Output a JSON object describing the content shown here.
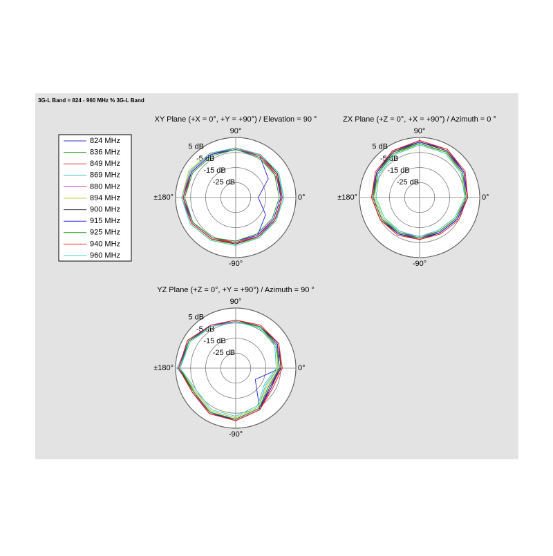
{
  "header": "3G-L Band = 824 - 960 MHz % 3G-L Band",
  "chart_data": [
    {
      "type": "polar",
      "title": "XY Plane (+X = 0°, +Y = +90°) / Elevation = 90 °",
      "theta": [
        0,
        30,
        60,
        90,
        120,
        150,
        180,
        210,
        240,
        270,
        300,
        330
      ],
      "rlim": [
        -35,
        5
      ],
      "rticks": [
        {
          "value": 5,
          "label": "5 dB"
        },
        {
          "value": -5,
          "label": "-5 dB"
        },
        {
          "value": -15,
          "label": "-15 dB"
        },
        {
          "value": -25,
          "label": "-25 dB"
        }
      ],
      "thetaticks": [
        {
          "value": 90,
          "label": "90°"
        },
        {
          "value": 0,
          "label": "0°"
        },
        {
          "value": 180,
          "label": "±180°"
        },
        {
          "value": -90,
          "label": "-90°"
        }
      ],
      "series": [
        {
          "name": "824 MHz",
          "color": "#3333cc",
          "values": [
            -20,
            -10,
            -3,
            -2,
            -1,
            0,
            1,
            -1,
            -3,
            -5,
            -6,
            -12
          ]
        },
        {
          "name": "836 MHz",
          "color": "#339933",
          "values": [
            -4,
            -3,
            -2,
            -2,
            -1,
            0,
            0,
            -1,
            -3,
            -4,
            -5,
            -5
          ]
        },
        {
          "name": "849 MHz",
          "color": "#dd3333",
          "values": [
            -5,
            -3,
            -3,
            -2,
            -2,
            -1,
            -1,
            -2,
            -4,
            -5,
            -6,
            -6
          ]
        },
        {
          "name": "869 MHz",
          "color": "#33bbbb",
          "values": [
            -3,
            -3,
            -2,
            -2,
            -1,
            0,
            1,
            0,
            -2,
            -4,
            -5,
            -4
          ]
        },
        {
          "name": "880 MHz",
          "color": "#cc33cc",
          "values": [
            -4,
            -4,
            -3,
            -2,
            -2,
            -1,
            0,
            -1,
            -3,
            -5,
            -6,
            -5
          ]
        },
        {
          "name": "894 MHz",
          "color": "#cccc33",
          "values": [
            -3,
            -2,
            -2,
            -2,
            -1,
            1,
            1,
            0,
            -2,
            -4,
            -4,
            -4
          ]
        },
        {
          "name": "900 MHz",
          "color": "#333333",
          "values": [
            -4,
            -3,
            -2,
            -2,
            -2,
            -1,
            0,
            -1,
            -3,
            -4,
            -5,
            -5
          ]
        },
        {
          "name": "915 MHz",
          "color": "#2222dd",
          "values": [
            -5,
            -4,
            -3,
            -3,
            -2,
            -1,
            0,
            -2,
            -4,
            -6,
            -6,
            -6
          ]
        },
        {
          "name": "925 MHz",
          "color": "#229922",
          "values": [
            -6,
            -5,
            -4,
            -3,
            -3,
            -2,
            -1,
            -2,
            -4,
            -6,
            -7,
            -7
          ]
        },
        {
          "name": "940 MHz",
          "color": "#ee2222",
          "values": [
            -4,
            -4,
            -3,
            -2,
            -1,
            0,
            0,
            -1,
            -3,
            -5,
            -5,
            -5
          ]
        },
        {
          "name": "960 MHz",
          "color": "#44cccc",
          "values": [
            -3,
            -2,
            -2,
            -2,
            -1,
            0,
            1,
            0,
            -2,
            -3,
            -4,
            -4
          ]
        }
      ]
    },
    {
      "type": "polar",
      "title": "ZX Plane (+Z = 0°, +X = +90°) / Azimuth = 0 °",
      "theta": [
        0,
        30,
        60,
        90,
        120,
        150,
        180,
        210,
        240,
        270,
        300,
        330
      ],
      "rlim": [
        -35,
        5
      ],
      "rticks": [
        {
          "value": 5,
          "label": "5 dB"
        },
        {
          "value": -5,
          "label": "-5 dB"
        },
        {
          "value": -15,
          "label": "-15 dB"
        },
        {
          "value": -25,
          "label": "-25 dB"
        }
      ],
      "thetaticks": [
        {
          "value": 90,
          "label": "90°"
        },
        {
          "value": 0,
          "label": "0°"
        },
        {
          "value": 180,
          "label": "±180°"
        },
        {
          "value": -90,
          "label": "-90°"
        }
      ],
      "series": [
        {
          "color": "#3333cc",
          "values": [
            -3,
            -1,
            1,
            2,
            1,
            -2,
            -4,
            -6,
            -7,
            -7,
            -8,
            -6
          ]
        },
        {
          "color": "#339933",
          "values": [
            -4,
            -2,
            0,
            1,
            0,
            -3,
            -4,
            -6,
            -8,
            -8,
            -9,
            -7
          ]
        },
        {
          "color": "#dd3333",
          "values": [
            -3,
            -1,
            2,
            3,
            1,
            -2,
            -3,
            -5,
            -7,
            -7,
            -8,
            -6
          ]
        },
        {
          "color": "#33bbbb",
          "values": [
            -4,
            -2,
            0,
            1,
            -1,
            -3,
            -5,
            -7,
            -8,
            -8,
            -9,
            -7
          ]
        },
        {
          "color": "#cc33cc",
          "values": [
            -3,
            -2,
            1,
            2,
            0,
            -2,
            -4,
            -6,
            -8,
            -9,
            -9,
            -7
          ]
        },
        {
          "color": "#cccc33",
          "values": [
            -4,
            -3,
            0,
            0,
            -1,
            -3,
            -5,
            -7,
            -9,
            -9,
            -10,
            -8
          ]
        },
        {
          "color": "#333333",
          "values": [
            -3,
            -1,
            1,
            2,
            0,
            -2,
            -3,
            -5,
            -7,
            -7,
            -8,
            -6
          ]
        },
        {
          "color": "#2222dd",
          "values": [
            -3,
            -1,
            2,
            2,
            1,
            -2,
            -4,
            -6,
            -7,
            -8,
            -8,
            -6
          ]
        },
        {
          "color": "#229922",
          "values": [
            -4,
            -2,
            0,
            1,
            -1,
            -3,
            -4,
            -6,
            -8,
            -8,
            -9,
            -7
          ]
        },
        {
          "color": "#ee2222",
          "values": [
            -3,
            0,
            2,
            3,
            1,
            -1,
            -3,
            -5,
            -6,
            -7,
            -7,
            -5
          ]
        },
        {
          "color": "#44cccc",
          "values": [
            -5,
            -3,
            -1,
            0,
            -2,
            -4,
            -6,
            -8,
            -9,
            -9,
            -10,
            -8
          ]
        }
      ]
    },
    {
      "type": "polar",
      "title": "YZ Plane (+Z = 0°, +Y = +90°) / Azimuth = 90 °",
      "theta": [
        0,
        30,
        60,
        90,
        120,
        150,
        180,
        210,
        240,
        270,
        300,
        330
      ],
      "rlim": [
        -35,
        5
      ],
      "rticks": [
        {
          "value": 5,
          "label": "5 dB"
        },
        {
          "value": -5,
          "label": "-5 dB"
        },
        {
          "value": -15,
          "label": "-15 dB"
        },
        {
          "value": -25,
          "label": "-25 dB"
        }
      ],
      "thetaticks": [
        {
          "value": 90,
          "label": "90°"
        },
        {
          "value": 0,
          "label": "0°"
        },
        {
          "value": 180,
          "label": "±180°"
        },
        {
          "value": -90,
          "label": "-90°"
        }
      ],
      "series": [
        {
          "color": "#3333cc",
          "values": [
            -5,
            -2,
            -3,
            -4,
            -2,
            2,
            3,
            -3,
            -1,
            0,
            -3,
            -20
          ]
        },
        {
          "color": "#339933",
          "values": [
            -6,
            -3,
            -3,
            -4,
            -3,
            1,
            2,
            -2,
            -1,
            -1,
            -4,
            -10
          ]
        },
        {
          "color": "#dd3333",
          "values": [
            -5,
            -2,
            -2,
            -3,
            -2,
            2,
            3,
            -3,
            0,
            0,
            -3,
            -8
          ]
        },
        {
          "color": "#33bbbb",
          "values": [
            -7,
            -4,
            -4,
            -4,
            -3,
            1,
            4,
            -4,
            -2,
            -2,
            -5,
            -12
          ]
        },
        {
          "color": "#cc33cc",
          "values": [
            -6,
            -3,
            -3,
            -4,
            -2,
            2,
            3,
            -2,
            -1,
            -1,
            -4,
            -9
          ]
        },
        {
          "color": "#cccc33",
          "values": [
            -7,
            -4,
            -4,
            -4,
            -3,
            1,
            2,
            -4,
            -2,
            -2,
            -5,
            -11
          ]
        },
        {
          "color": "#333333",
          "values": [
            -5,
            -2,
            -3,
            -3,
            -2,
            2,
            3,
            -3,
            -1,
            0,
            -3,
            -9
          ]
        },
        {
          "color": "#2222dd",
          "values": [
            -6,
            -3,
            -3,
            -4,
            -2,
            1,
            3,
            -2,
            0,
            -1,
            -4,
            -8
          ]
        },
        {
          "color": "#229922",
          "values": [
            -6,
            -4,
            -3,
            -4,
            -3,
            1,
            2,
            -3,
            -1,
            -1,
            -4,
            -10
          ]
        },
        {
          "color": "#ee2222",
          "values": [
            -4,
            -2,
            -2,
            -3,
            -2,
            2,
            3,
            -2,
            0,
            0,
            -3,
            -7
          ]
        },
        {
          "color": "#44cccc",
          "values": [
            -8,
            -5,
            -4,
            -4,
            -3,
            0,
            2,
            -5,
            -3,
            -3,
            -6,
            -13
          ]
        }
      ]
    }
  ]
}
